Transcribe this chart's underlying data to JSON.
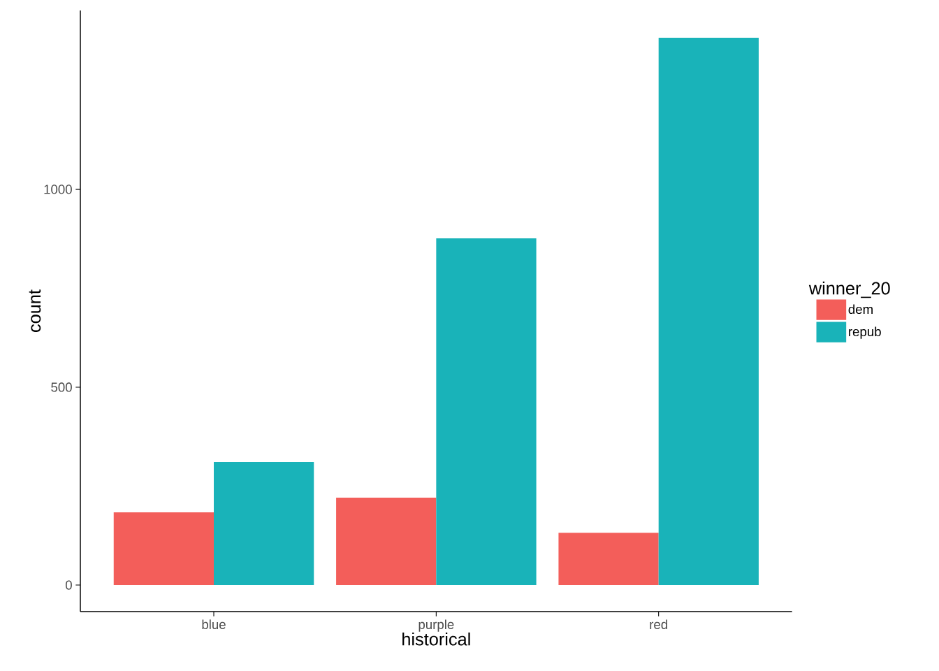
{
  "chart_data": {
    "type": "bar",
    "xlabel": "historical",
    "ylabel": "count",
    "legend_title": "winner_20",
    "categories": [
      "blue",
      "purple",
      "red"
    ],
    "series": [
      {
        "name": "dem",
        "color": "#f35e5a",
        "values": [
          184,
          221,
          132
        ]
      },
      {
        "name": "repub",
        "color": "#19b3b9",
        "values": [
          311,
          876,
          1383
        ]
      }
    ],
    "ylim": [
      -67,
      1452
    ],
    "yticks": [
      0,
      500,
      1000
    ],
    "grid": false,
    "legend": "right"
  }
}
